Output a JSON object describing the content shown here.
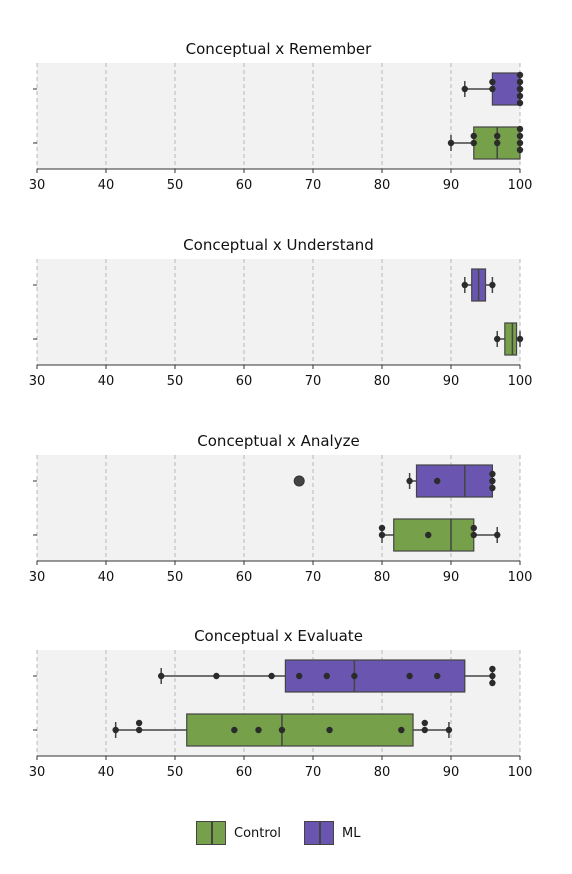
{
  "colors": {
    "Control": "#76a04a",
    "ML": "#6a56b1",
    "panel_bg": "#f2f2f2",
    "grid": "#b8b8b8",
    "box_edge": "#444444",
    "point": "#2b2b2b"
  },
  "legend": {
    "items": [
      {
        "label": "Control",
        "color": "#76a04a"
      },
      {
        "label": "ML",
        "color": "#6a56b1"
      }
    ]
  },
  "chart_data": [
    {
      "type": "box",
      "title": "Conceptual x Remember",
      "xlim": [
        30,
        100
      ],
      "xticks": [
        "30",
        "40",
        "50",
        "60",
        "70",
        "80",
        "90",
        "100"
      ],
      "grid": "vertical dashed",
      "legend": "bottom",
      "series": [
        {
          "name": "ML",
          "box": {
            "q1": 96,
            "median": 100,
            "q3": 100,
            "whisker_low": 92,
            "whisker_high": 100,
            "outliers": []
          },
          "points": [
            92,
            96,
            96,
            100,
            100,
            100,
            100,
            100,
            100
          ]
        },
        {
          "name": "Control",
          "box": {
            "q1": 93.3,
            "median": 96.7,
            "q3": 100,
            "whisker_low": 90,
            "whisker_high": 100,
            "outliers": []
          },
          "points": [
            90,
            93.3,
            93.3,
            96.7,
            96.7,
            100,
            100,
            100,
            100
          ]
        }
      ]
    },
    {
      "type": "box",
      "title": "Conceptual x Understand",
      "xlim": [
        30,
        100
      ],
      "xticks": [
        "30",
        "40",
        "50",
        "60",
        "70",
        "80",
        "90",
        "100"
      ],
      "grid": "vertical dashed",
      "legend": "bottom",
      "series": [
        {
          "name": "ML",
          "box": {
            "q1": 93,
            "median": 94,
            "q3": 95,
            "whisker_low": 92,
            "whisker_high": 96,
            "outliers": []
          },
          "points": [
            92,
            96
          ]
        },
        {
          "name": "Control",
          "box": {
            "q1": 97.8,
            "median": 98.9,
            "q3": 99.5,
            "whisker_low": 96.7,
            "whisker_high": 100,
            "outliers": []
          },
          "points": [
            96.7,
            100
          ]
        }
      ]
    },
    {
      "type": "box",
      "title": "Conceptual x Analyze",
      "xlim": [
        30,
        100
      ],
      "xticks": [
        "30",
        "40",
        "50",
        "60",
        "70",
        "80",
        "90",
        "100"
      ],
      "grid": "vertical dashed",
      "legend": "bottom",
      "series": [
        {
          "name": "ML",
          "box": {
            "q1": 85,
            "median": 92,
            "q3": 96,
            "whisker_low": 84,
            "whisker_high": 96,
            "outliers": [
              68
            ]
          },
          "points": [
            84,
            88,
            96,
            96,
            96
          ]
        },
        {
          "name": "Control",
          "box": {
            "q1": 81.7,
            "median": 90,
            "q3": 93.3,
            "whisker_low": 80,
            "whisker_high": 96.7,
            "outliers": []
          },
          "points": [
            80,
            80,
            86.7,
            93.3,
            93.3,
            96.7
          ]
        }
      ]
    },
    {
      "type": "box",
      "title": "Conceptual x Evaluate",
      "xlim": [
        30,
        100
      ],
      "xticks": [
        "30",
        "40",
        "50",
        "60",
        "70",
        "80",
        "90",
        "100"
      ],
      "grid": "vertical dashed",
      "legend": "bottom",
      "series": [
        {
          "name": "ML",
          "box": {
            "q1": 66,
            "median": 76,
            "q3": 92,
            "whisker_low": 48,
            "whisker_high": 96,
            "outliers": []
          },
          "points": [
            48,
            56,
            64,
            68,
            72,
            76,
            84,
            88,
            96,
            96,
            96
          ]
        },
        {
          "name": "Control",
          "box": {
            "q1": 51.7,
            "median": 65.5,
            "q3": 84.5,
            "whisker_low": 41.4,
            "whisker_high": 89.7,
            "outliers": []
          },
          "points": [
            41.4,
            44.8,
            44.8,
            58.6,
            62.1,
            65.5,
            72.4,
            82.8,
            86.2,
            86.2,
            89.7
          ]
        }
      ]
    }
  ]
}
